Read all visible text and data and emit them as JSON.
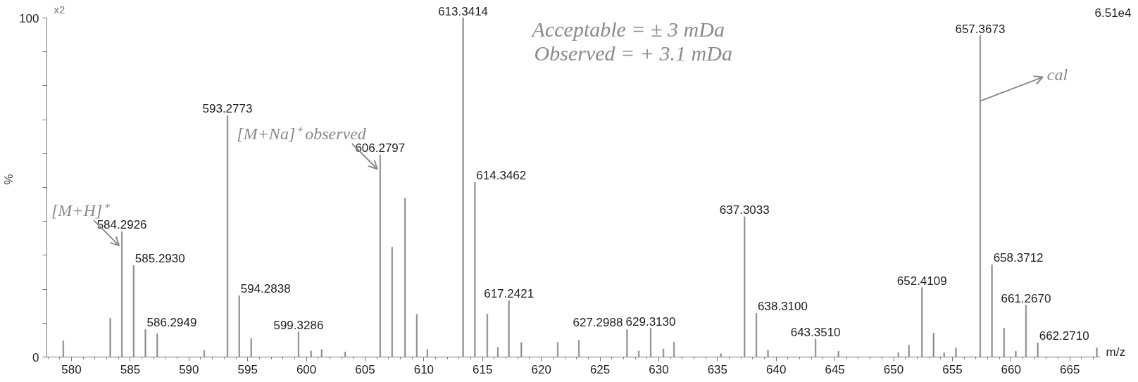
{
  "chart_data": {
    "type": "bar",
    "xlabel": "m/z",
    "ylabel": "%",
    "color": "#8a8a8a",
    "x": [
      579.3,
      583.3,
      584.2926,
      585.293,
      586.2949,
      587.3,
      591.3,
      593.2773,
      594.2838,
      595.3,
      599.3286,
      600.4,
      601.3,
      603.3,
      606.2797,
      607.3,
      608.4,
      609.4,
      610.3,
      613.3414,
      614.3462,
      615.4,
      616.3,
      617.2421,
      618.3,
      621.4,
      623.2,
      627.2988,
      628.3,
      629.313,
      630.4,
      631.3,
      635.3,
      637.3033,
      638.31,
      639.3,
      643.351,
      645.3,
      650.4,
      651.3,
      652.4109,
      653.4,
      654.3,
      655.3,
      657.3673,
      658.3712,
      659.4,
      660.4,
      661.267,
      662.271,
      667.3
    ],
    "values": [
      4.8,
      11.4,
      37.0,
      27.0,
      8.1,
      6.8,
      1.9,
      71.2,
      18.1,
      5.5,
      7.4,
      1.8,
      2.2,
      1.5,
      59.6,
      32.4,
      46.9,
      12.6,
      2.2,
      100,
      51.5,
      12.7,
      2.9,
      16.6,
      4.3,
      4.3,
      5.0,
      8.1,
      1.8,
      8.5,
      2.4,
      4.4,
      1.0,
      41.4,
      12.9,
      2.0,
      5.3,
      1.7,
      1.3,
      3.5,
      20.5,
      7.1,
      1.3,
      2.7,
      94.8,
      27.2,
      8.5,
      1.7,
      15.3,
      4.2,
      2.7
    ],
    "xlim": [
      577.9,
      667.6
    ],
    "xticks": [
      580,
      585,
      590,
      595,
      600,
      605,
      610,
      615,
      620,
      625,
      630,
      635,
      640,
      645,
      650,
      655,
      660,
      665
    ],
    "ylim": [
      0,
      100
    ],
    "yticks": [
      0,
      {
        "value": 10,
        "label": null
      },
      {
        "value": 20,
        "label": null
      },
      {
        "value": 30,
        "label": null
      },
      {
        "value": 40,
        "label": null
      },
      {
        "value": 50,
        "label": null
      },
      {
        "value": 60,
        "label": null
      },
      {
        "value": 70,
        "label": null
      },
      {
        "value": 80,
        "label": null
      },
      {
        "value": 90,
        "label": null
      },
      100
    ],
    "grid": false,
    "annotations": [
      "x2",
      "6.51e4",
      "Acceptable = ± 3 mDa",
      "Observed = + 3.1 mDa",
      {
        "text": "584.2926",
        "x": 584.2926,
        "y": 37.0
      },
      {
        "text": "585.2930",
        "x": 585.293,
        "y": 27.0
      },
      {
        "text": "586.2949",
        "x": 586.2949,
        "y": 8.1
      },
      {
        "text": "593.2773",
        "x": 593.2773,
        "y": 71.2
      },
      {
        "text": "594.2838",
        "x": 594.2838,
        "y": 18.1
      },
      {
        "text": "599.3286",
        "x": 599.3286,
        "y": 7.4
      },
      {
        "text": "606.2797",
        "x": 606.2797,
        "y": 59.6
      },
      {
        "text": "613.3414",
        "x": 613.3414,
        "y": 100
      },
      {
        "text": "614.3462",
        "x": 614.3462,
        "y": 51.5
      },
      {
        "text": "617.2421",
        "x": 617.2421,
        "y": 16.6
      },
      {
        "text": "627.2988",
        "x": 627.2988,
        "y": 8.1
      },
      {
        "text": "629.3130",
        "x": 629.313,
        "y": 8.5
      },
      {
        "text": "637.3033",
        "x": 637.3033,
        "y": 41.4
      },
      {
        "text": "638.3100",
        "x": 638.31,
        "y": 12.9
      },
      {
        "text": "643.3510",
        "x": 643.351,
        "y": 5.3
      },
      {
        "text": "652.4109",
        "x": 652.4109,
        "y": 20.5
      },
      {
        "text": "657.3673",
        "x": 657.3673,
        "y": 94.8
      },
      {
        "text": "658.3712",
        "x": 658.3712,
        "y": 27.2
      },
      {
        "text": "661.2670",
        "x": 661.267,
        "y": 15.3
      },
      {
        "text": "662.2710",
        "x": 662.271,
        "y": 4.2
      },
      {
        "text": "[M+H]⁺",
        "x": 584.2926,
        "y": 37.0
      },
      {
        "text": "[M+Na]⁺ observed",
        "x": 606.2797,
        "y": 59.6
      },
      {
        "text": "cal",
        "x": 657.3673,
        "y": 75.5
      }
    ]
  }
}
